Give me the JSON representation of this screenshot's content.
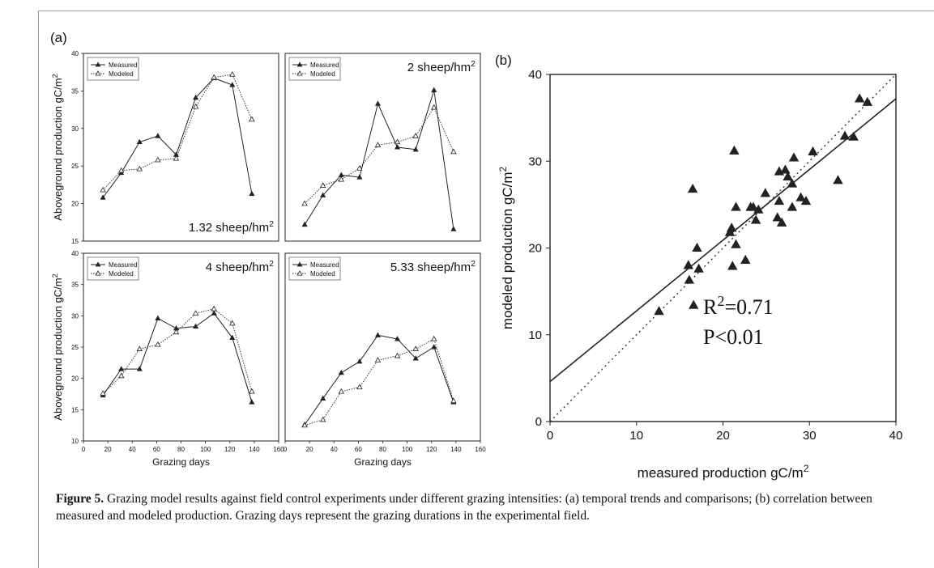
{
  "figure_label": "Figure 5.",
  "caption_text": "Grazing model results against field control experiments under different grazing intensities: (a) temporal trends and comparisons; (b) correlation between measured and modeled production. Grazing days represent the grazing durations in the experimental field.",
  "colors": {
    "frame": "#9a9a9a",
    "line": "#222222",
    "text": "#111111"
  },
  "chart_data": [
    {
      "type": "line",
      "panel": "(a)",
      "annotation": "1.32 sheep/hm²",
      "ylabel": "Aboveground production gC/m²",
      "xlabel": "",
      "xlim": [
        0,
        160
      ],
      "ylim": [
        15,
        40
      ],
      "xticks": [
        0,
        20,
        40,
        60,
        80,
        100,
        120,
        140,
        160
      ],
      "yticks": [
        15,
        20,
        25,
        30,
        35,
        40
      ],
      "legend": "top-left",
      "x": [
        16,
        31,
        46,
        61,
        76,
        92,
        107,
        122,
        138
      ],
      "series": [
        {
          "name": "Measured",
          "values": [
            20.8,
            24.1,
            28.2,
            29.0,
            26.5,
            34.1,
            36.7,
            35.8,
            21.3
          ]
        },
        {
          "name": "Modeled",
          "values": [
            21.8,
            24.4,
            24.6,
            25.8,
            26.0,
            32.9,
            36.8,
            37.2,
            31.2
          ]
        }
      ]
    },
    {
      "type": "line",
      "panel": "",
      "annotation": "2 sheep/hm²",
      "ylabel": "",
      "xlabel": "",
      "xlim": [
        0,
        160
      ],
      "ylim": [
        15,
        40
      ],
      "xticks": [
        0,
        20,
        40,
        60,
        80,
        100,
        120,
        140,
        160
      ],
      "yticks": [
        15,
        20,
        25,
        30,
        35,
        40
      ],
      "legend": "top-left",
      "x": [
        16,
        31,
        46,
        61,
        76,
        92,
        107,
        122,
        138
      ],
      "series": [
        {
          "name": "Measured",
          "values": [
            17.2,
            21.1,
            23.8,
            23.5,
            33.3,
            27.5,
            27.2,
            35.1,
            16.6
          ]
        },
        {
          "name": "Modeled",
          "values": [
            20.0,
            22.4,
            23.2,
            24.7,
            27.8,
            28.2,
            29.0,
            32.8,
            26.9
          ]
        }
      ]
    },
    {
      "type": "line",
      "panel": "",
      "annotation": "4 sheep/hm²",
      "ylabel": "Aboveground production gC/m²",
      "xlabel": "Grazing days",
      "xlim": [
        0,
        160
      ],
      "ylim": [
        10,
        40
      ],
      "xticks": [
        0,
        20,
        40,
        60,
        80,
        100,
        120,
        140,
        160
      ],
      "yticks": [
        10,
        15,
        20,
        25,
        30,
        35,
        40
      ],
      "legend": "top-left",
      "x": [
        16,
        31,
        46,
        61,
        76,
        92,
        107,
        122,
        138
      ],
      "series": [
        {
          "name": "Measured",
          "values": [
            17.3,
            21.5,
            21.5,
            29.6,
            28.0,
            28.3,
            30.4,
            26.5,
            16.2
          ]
        },
        {
          "name": "Modeled",
          "values": [
            17.6,
            20.4,
            24.7,
            25.4,
            27.4,
            30.4,
            31.1,
            28.8,
            17.9
          ]
        }
      ]
    },
    {
      "type": "line",
      "panel": "",
      "annotation": "5.33 sheep/hm²",
      "ylabel": "",
      "xlabel": "Grazing days",
      "xlim": [
        0,
        160
      ],
      "ylim": [
        10,
        40
      ],
      "xticks": [
        0,
        20,
        40,
        60,
        80,
        100,
        120,
        140,
        160
      ],
      "yticks": [
        10,
        15,
        20,
        25,
        30,
        35,
        40
      ],
      "legend": "top-left",
      "x": [
        16,
        31,
        46,
        61,
        76,
        92,
        107,
        122,
        138
      ],
      "series": [
        {
          "name": "Measured",
          "values": [
            12.6,
            16.8,
            20.9,
            22.7,
            26.9,
            26.3,
            23.2,
            25.0,
            16.2
          ]
        },
        {
          "name": "Modeled",
          "values": [
            12.5,
            13.4,
            17.9,
            18.6,
            22.9,
            23.6,
            24.7,
            26.3,
            16.4
          ]
        }
      ]
    },
    {
      "type": "scatter",
      "panel": "(b)",
      "xlabel": "measured production gC/m²",
      "ylabel": "modeled production gC/m²",
      "xlim": [
        0,
        40
      ],
      "ylim": [
        0,
        40
      ],
      "xticks": [
        0,
        10,
        20,
        30,
        40
      ],
      "yticks": [
        0,
        10,
        20,
        30,
        40
      ],
      "stats": [
        "R²=0.71",
        "P<0.01"
      ],
      "fit_line": {
        "intercept": 4.6,
        "slope": 0.815
      },
      "identity_line": true,
      "points": [
        [
          12.6,
          12.7
        ],
        [
          16.0,
          18.0
        ],
        [
          16.1,
          16.3
        ],
        [
          16.5,
          26.8
        ],
        [
          16.6,
          13.4
        ],
        [
          17.0,
          20.0
        ],
        [
          17.2,
          17.6
        ],
        [
          20.8,
          21.8
        ],
        [
          21.0,
          22.3
        ],
        [
          21.1,
          17.9
        ],
        [
          21.3,
          31.2
        ],
        [
          21.5,
          24.7
        ],
        [
          21.5,
          20.4
        ],
        [
          22.6,
          18.6
        ],
        [
          23.2,
          24.7
        ],
        [
          23.5,
          24.7
        ],
        [
          23.8,
          23.2
        ],
        [
          24.1,
          24.4
        ],
        [
          24.9,
          26.3
        ],
        [
          26.3,
          23.5
        ],
        [
          26.5,
          25.4
        ],
        [
          26.5,
          28.8
        ],
        [
          26.8,
          22.9
        ],
        [
          27.2,
          29.0
        ],
        [
          27.5,
          28.2
        ],
        [
          28.0,
          27.4
        ],
        [
          28.0,
          24.7
        ],
        [
          28.2,
          30.4
        ],
        [
          29.0,
          25.8
        ],
        [
          29.6,
          25.4
        ],
        [
          30.4,
          31.1
        ],
        [
          33.3,
          27.8
        ],
        [
          34.1,
          32.9
        ],
        [
          35.1,
          32.8
        ],
        [
          35.8,
          37.2
        ],
        [
          36.7,
          36.8
        ]
      ]
    }
  ]
}
